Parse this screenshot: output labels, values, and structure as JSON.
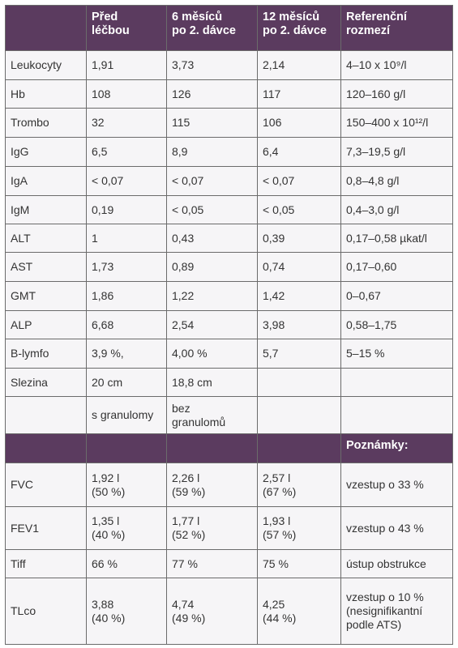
{
  "table": {
    "header": [
      null,
      "Před\nléčbou",
      "6 měsíců\npo 2. dávce",
      "12 měsíců\npo 2. dávce",
      "Referenční\nrozmezí"
    ],
    "rows": [
      [
        "Leukocyty",
        "1,91",
        "3,73",
        "2,14",
        "4–10 x 10⁹/l"
      ],
      [
        "Hb",
        "108",
        "126",
        "117",
        "120–160 g/l"
      ],
      [
        "Trombo",
        "32",
        "115",
        "106",
        "150–400 x 10¹²/l"
      ],
      [
        "IgG",
        "6,5",
        "8,9",
        "6,4",
        "7,3–19,5 g/l"
      ],
      [
        "IgA",
        "< 0,07",
        "< 0,07",
        "< 0,07",
        "0,8–4,8 g/l"
      ],
      [
        "IgM",
        "0,19",
        "< 0,05",
        "< 0,05",
        "0,4–3,0 g/l"
      ],
      [
        "ALT",
        "1",
        "0,43",
        "0,39",
        "0,17–0,58 µkat/l"
      ],
      [
        "AST",
        "1,73",
        "0,89",
        "0,74",
        "0,17–0,60"
      ],
      [
        "GMT",
        "1,86",
        "1,22",
        "1,42",
        "0–0,67"
      ],
      [
        "ALP",
        "6,68",
        "2,54",
        "3,98",
        "0,58–1,75"
      ],
      [
        "B-lymfo",
        "3,9 %,",
        "4,00 %",
        "5,7",
        "5–15 %"
      ],
      [
        "Slezina",
        "20 cm",
        "18,8 cm",
        null,
        null
      ],
      [
        null,
        "s granulomy",
        "bez\ngranulomů",
        null,
        null
      ]
    ],
    "subheader": [
      null,
      null,
      null,
      null,
      "Poznámky:"
    ],
    "rows2": [
      [
        "FVC",
        "1,92 l\n(50 %)",
        "2,26 l\n(59 %)",
        "2,57 l\n(67 %)",
        "vzestup o 33 %"
      ],
      [
        "FEV1",
        "1,35 l\n(40 %)",
        "1,77 l\n(52 %)",
        "1,93 l\n(57 %)",
        "vzestup o 43 %"
      ],
      [
        "Tiff",
        "66 %",
        "77 %",
        "75 %",
        "ústup obstrukce"
      ],
      [
        "TLco",
        "3,88\n(40 %)",
        "4,74\n(49 %)",
        "4,25\n(44 %)",
        "vzestup o 10 %\n(nesignifikantní\npodle ATS)"
      ]
    ]
  }
}
